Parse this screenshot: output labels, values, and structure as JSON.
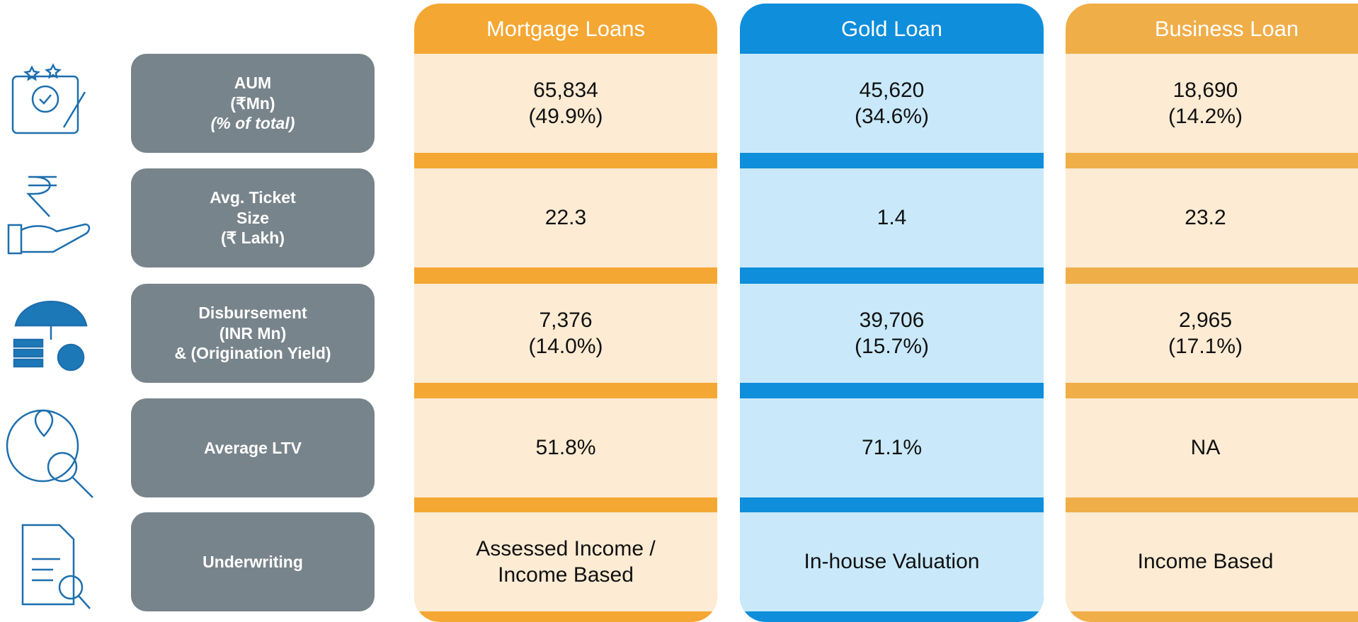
{
  "columns": [
    {
      "header": "Mortgage Loans",
      "band": "#f5a733",
      "cell": "#fdebd3",
      "cells": [
        [
          "65,834",
          "(49.9%)"
        ],
        [
          "22.3"
        ],
        [
          "7,376",
          "(14.0%)"
        ],
        [
          "51.8%"
        ],
        [
          "Assessed Income /",
          "Income Based"
        ]
      ]
    },
    {
      "header": "Gold Loan",
      "band": "#0e8edb",
      "cell": "#c9e9fb",
      "cells": [
        [
          "45,620",
          "(34.6%)"
        ],
        [
          "1.4"
        ],
        [
          "39,706",
          "(15.7%)"
        ],
        [
          "71.1%"
        ],
        [
          "In-house Valuation"
        ]
      ]
    },
    {
      "header": "Business Loan",
      "band": "#f0ae48",
      "cell": "#fdebd3",
      "cells": [
        [
          "18,690",
          "(14.2%)"
        ],
        [
          "23.2"
        ],
        [
          "2,965",
          "(17.1%)"
        ],
        [
          "NA"
        ],
        [
          "Income Based"
        ]
      ]
    }
  ],
  "rows": [
    {
      "label": [
        "AUM",
        "(₹Mn)",
        "(% of total)"
      ]
    },
    {
      "label": [
        "Avg. Ticket",
        "Size",
        "(₹ Lakh)"
      ]
    },
    {
      "label": [
        "Disbursement",
        "(INR Mn)",
        "& (Origination Yield)"
      ]
    },
    {
      "label": [
        "Average LTV"
      ]
    },
    {
      "label": [
        "Underwriting"
      ]
    }
  ]
}
